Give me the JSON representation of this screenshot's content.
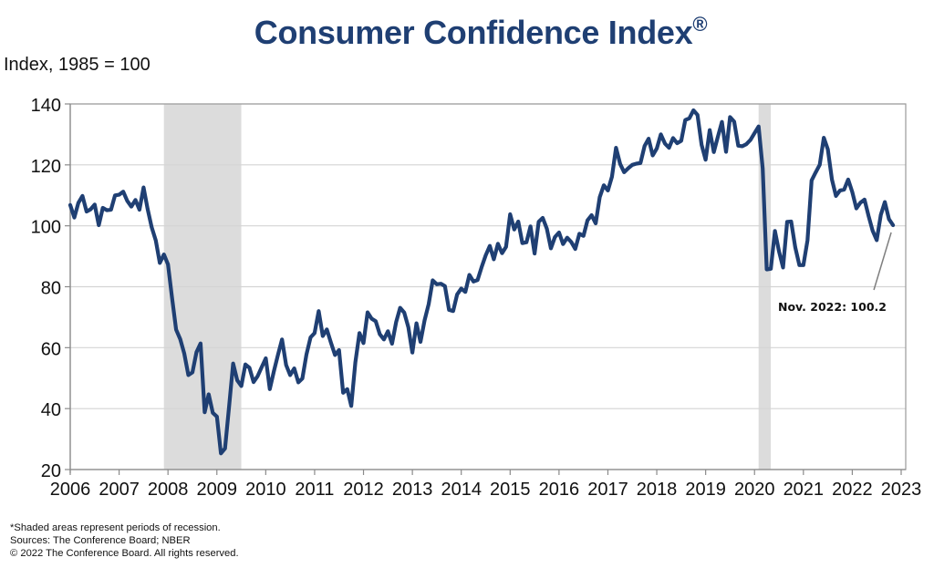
{
  "chart_data": {
    "type": "line",
    "title": "Consumer Confidence Index",
    "title_mark": "®",
    "ylabel": "Index, 1985 = 100",
    "xlabel": "",
    "ylim": [
      20,
      140
    ],
    "yticks": [
      20,
      40,
      60,
      80,
      100,
      120,
      140
    ],
    "xlim": [
      2006,
      2023
    ],
    "xticks": [
      "2006",
      "2007",
      "2008",
      "2009",
      "2010",
      "2011",
      "2012",
      "2013",
      "2014",
      "2015",
      "2016",
      "2017",
      "2018",
      "2019",
      "2020",
      "2021",
      "2022",
      "2023"
    ],
    "grid": true,
    "line_color": "#1f3f73",
    "recession_color": "#dcdcdc",
    "recessions": [
      {
        "start": "2007-12",
        "end": "2009-06"
      },
      {
        "start": "2020-02",
        "end": "2020-04"
      }
    ],
    "series": [
      {
        "name": "Consumer Confidence Index",
        "start": "2006-01",
        "frequency": "monthly",
        "values": [
          106.8,
          102.7,
          107.5,
          109.8,
          104.7,
          105.4,
          107.0,
          100.2,
          105.9,
          105.1,
          105.3,
          110.0,
          110.2,
          111.2,
          108.2,
          106.3,
          108.5,
          105.3,
          112.6,
          105.6,
          99.5,
          95.2,
          87.8,
          90.6,
          87.3,
          76.4,
          65.9,
          62.8,
          58.1,
          51.0,
          51.9,
          58.5,
          61.4,
          38.8,
          44.7,
          38.6,
          37.4,
          25.3,
          26.9,
          40.8,
          54.8,
          49.3,
          47.4,
          54.5,
          53.4,
          48.7,
          50.6,
          53.6,
          56.5,
          46.4,
          52.3,
          57.7,
          62.7,
          54.3,
          51.0,
          53.2,
          48.6,
          49.9,
          57.8,
          63.4,
          64.8,
          72.0,
          63.8,
          66.0,
          61.7,
          57.6,
          59.2,
          45.2,
          46.4,
          40.9,
          55.2,
          64.8,
          61.5,
          71.6,
          69.5,
          68.7,
          64.4,
          62.7,
          65.4,
          61.3,
          68.4,
          73.1,
          71.5,
          66.7,
          58.4,
          68.0,
          61.9,
          69.0,
          74.3,
          82.1,
          80.8,
          81.0,
          80.2,
          72.4,
          72.0,
          77.5,
          79.4,
          78.3,
          83.9,
          81.7,
          82.2,
          86.4,
          90.3,
          93.4,
          89.0,
          94.1,
          91.0,
          93.1,
          103.8,
          98.8,
          101.4,
          94.3,
          94.6,
          99.8,
          90.9,
          101.3,
          102.6,
          99.1,
          92.6,
          96.3,
          97.8,
          94.0,
          96.1,
          94.7,
          92.4,
          97.4,
          96.7,
          101.8,
          103.5,
          100.8,
          109.4,
          113.3,
          111.6,
          116.1,
          125.6,
          120.3,
          117.6,
          118.9,
          120.0,
          120.4,
          120.6,
          126.2,
          128.6,
          123.1,
          125.4,
          130.0,
          127.0,
          125.6,
          128.8,
          127.1,
          127.9,
          134.7,
          135.3,
          137.9,
          136.4,
          126.6,
          121.7,
          131.4,
          124.2,
          129.2,
          134.1,
          124.3,
          135.7,
          134.2,
          126.3,
          126.1,
          126.8,
          128.2,
          130.4,
          132.6,
          118.8,
          85.7,
          85.9,
          98.3,
          91.7,
          86.3,
          101.3,
          101.4,
          92.9,
          87.1,
          87.1,
          95.2,
          114.9,
          117.5,
          120.0,
          128.9,
          125.1,
          115.2,
          109.8,
          111.6,
          111.9,
          115.2,
          111.1,
          105.7,
          107.6,
          108.6,
          103.2,
          98.4,
          95.3,
          103.6,
          107.8,
          102.2,
          100.2
        ]
      }
    ],
    "annotations": [
      {
        "text": "Nov. 2022: 100.2",
        "point": "2022-11",
        "value": 100.2
      }
    ]
  },
  "footer": {
    "note": "*Shaded areas represent periods of recession.",
    "sources": "Sources: The Conference Board; NBER",
    "copyright": "© 2022 The Conference Board. All rights reserved."
  }
}
